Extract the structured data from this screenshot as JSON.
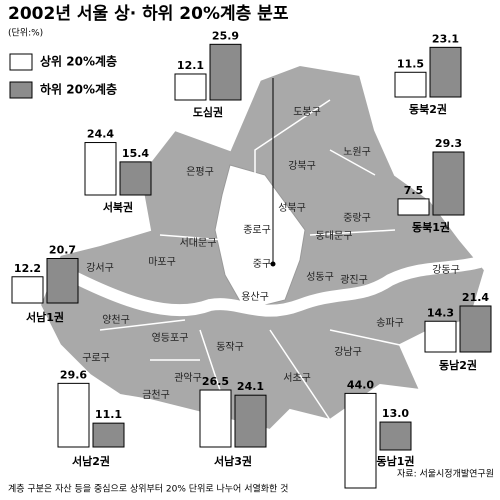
{
  "header": {
    "title": "2002년 서울 상· 하위 20%계층 분포",
    "unit": "(단위:%)"
  },
  "legend": [
    {
      "name": "상위 20%계층",
      "color": "#ffffff"
    },
    {
      "name": "하위 20%계층",
      "color": "#8c8c8c"
    }
  ],
  "regions": [
    {
      "name": "도심권",
      "values": [
        12.1,
        25.9
      ]
    },
    {
      "name": "동북2권",
      "values": [
        11.5,
        23.1
      ]
    },
    {
      "name": "서북권",
      "values": [
        24.4,
        15.4
      ]
    },
    {
      "name": "동북1권",
      "values": [
        7.5,
        29.3
      ]
    },
    {
      "name": "서남1권",
      "values": [
        12.2,
        20.7
      ]
    },
    {
      "name": "동남2권",
      "values": [
        14.3,
        21.4
      ]
    },
    {
      "name": "서남2권",
      "values": [
        29.6,
        11.1
      ]
    },
    {
      "name": "서남3권",
      "values": [
        26.5,
        24.1
      ]
    },
    {
      "name": "동남1권",
      "values": [
        44.0,
        13.0
      ],
      "value_labels": [
        "44.0",
        "13.0"
      ]
    }
  ],
  "districts": [
    "도봉구",
    "노원구",
    "강북구",
    "은평구",
    "성북구",
    "종로구",
    "중랑구",
    "서대문구",
    "동대문구",
    "마포구",
    "중구",
    "강서구",
    "성동구",
    "광진구",
    "강동구",
    "용산구",
    "양천구",
    "영등포구",
    "동작구",
    "송파구",
    "구로구",
    "강남구",
    "관악구",
    "서초구",
    "금천구"
  ],
  "footer": {
    "note": "계층 구분은 자산 등을 중심으로 상위부터 20% 단위로 나누어 서열화한 것",
    "source": "자료: 서울시정개발연구원"
  }
}
